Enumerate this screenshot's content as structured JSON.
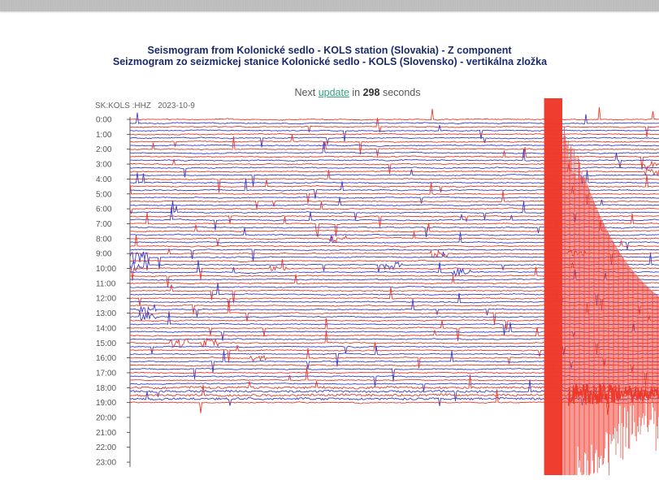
{
  "page": {
    "title_en": "Seismogram from Kolonické sedlo - KOLS station (Slovakia) - Z component",
    "title_sk": "Seizmogram zo seizmickej stanice Kolonické sedlo - KOLS (Slovensko) - vertikálna zložka",
    "update_prefix": "Next ",
    "update_link": "update",
    "update_middle": " in ",
    "update_seconds": "298",
    "update_suffix": " seconds"
  },
  "plot": {
    "station": "SK:KOLS :HHZ",
    "date": "2023-10-9",
    "row_labels": [
      "0:00",
      "1:00",
      "2:00",
      "3:00",
      "4:00",
      "5:00",
      "6:00",
      "7:00",
      "8:00",
      "9:00",
      "10:00",
      "11:00",
      "12:00",
      "13:00",
      "14:00",
      "15:00",
      "16:00",
      "17:00",
      "18:00",
      "19:00",
      "20:00",
      "21:00",
      "22:00",
      "23:00"
    ],
    "colors": {
      "trace_a": "#e8392b",
      "trace_b": "#3b3fc8",
      "axis": "#333333",
      "event": "#ee3a2c"
    }
  }
}
